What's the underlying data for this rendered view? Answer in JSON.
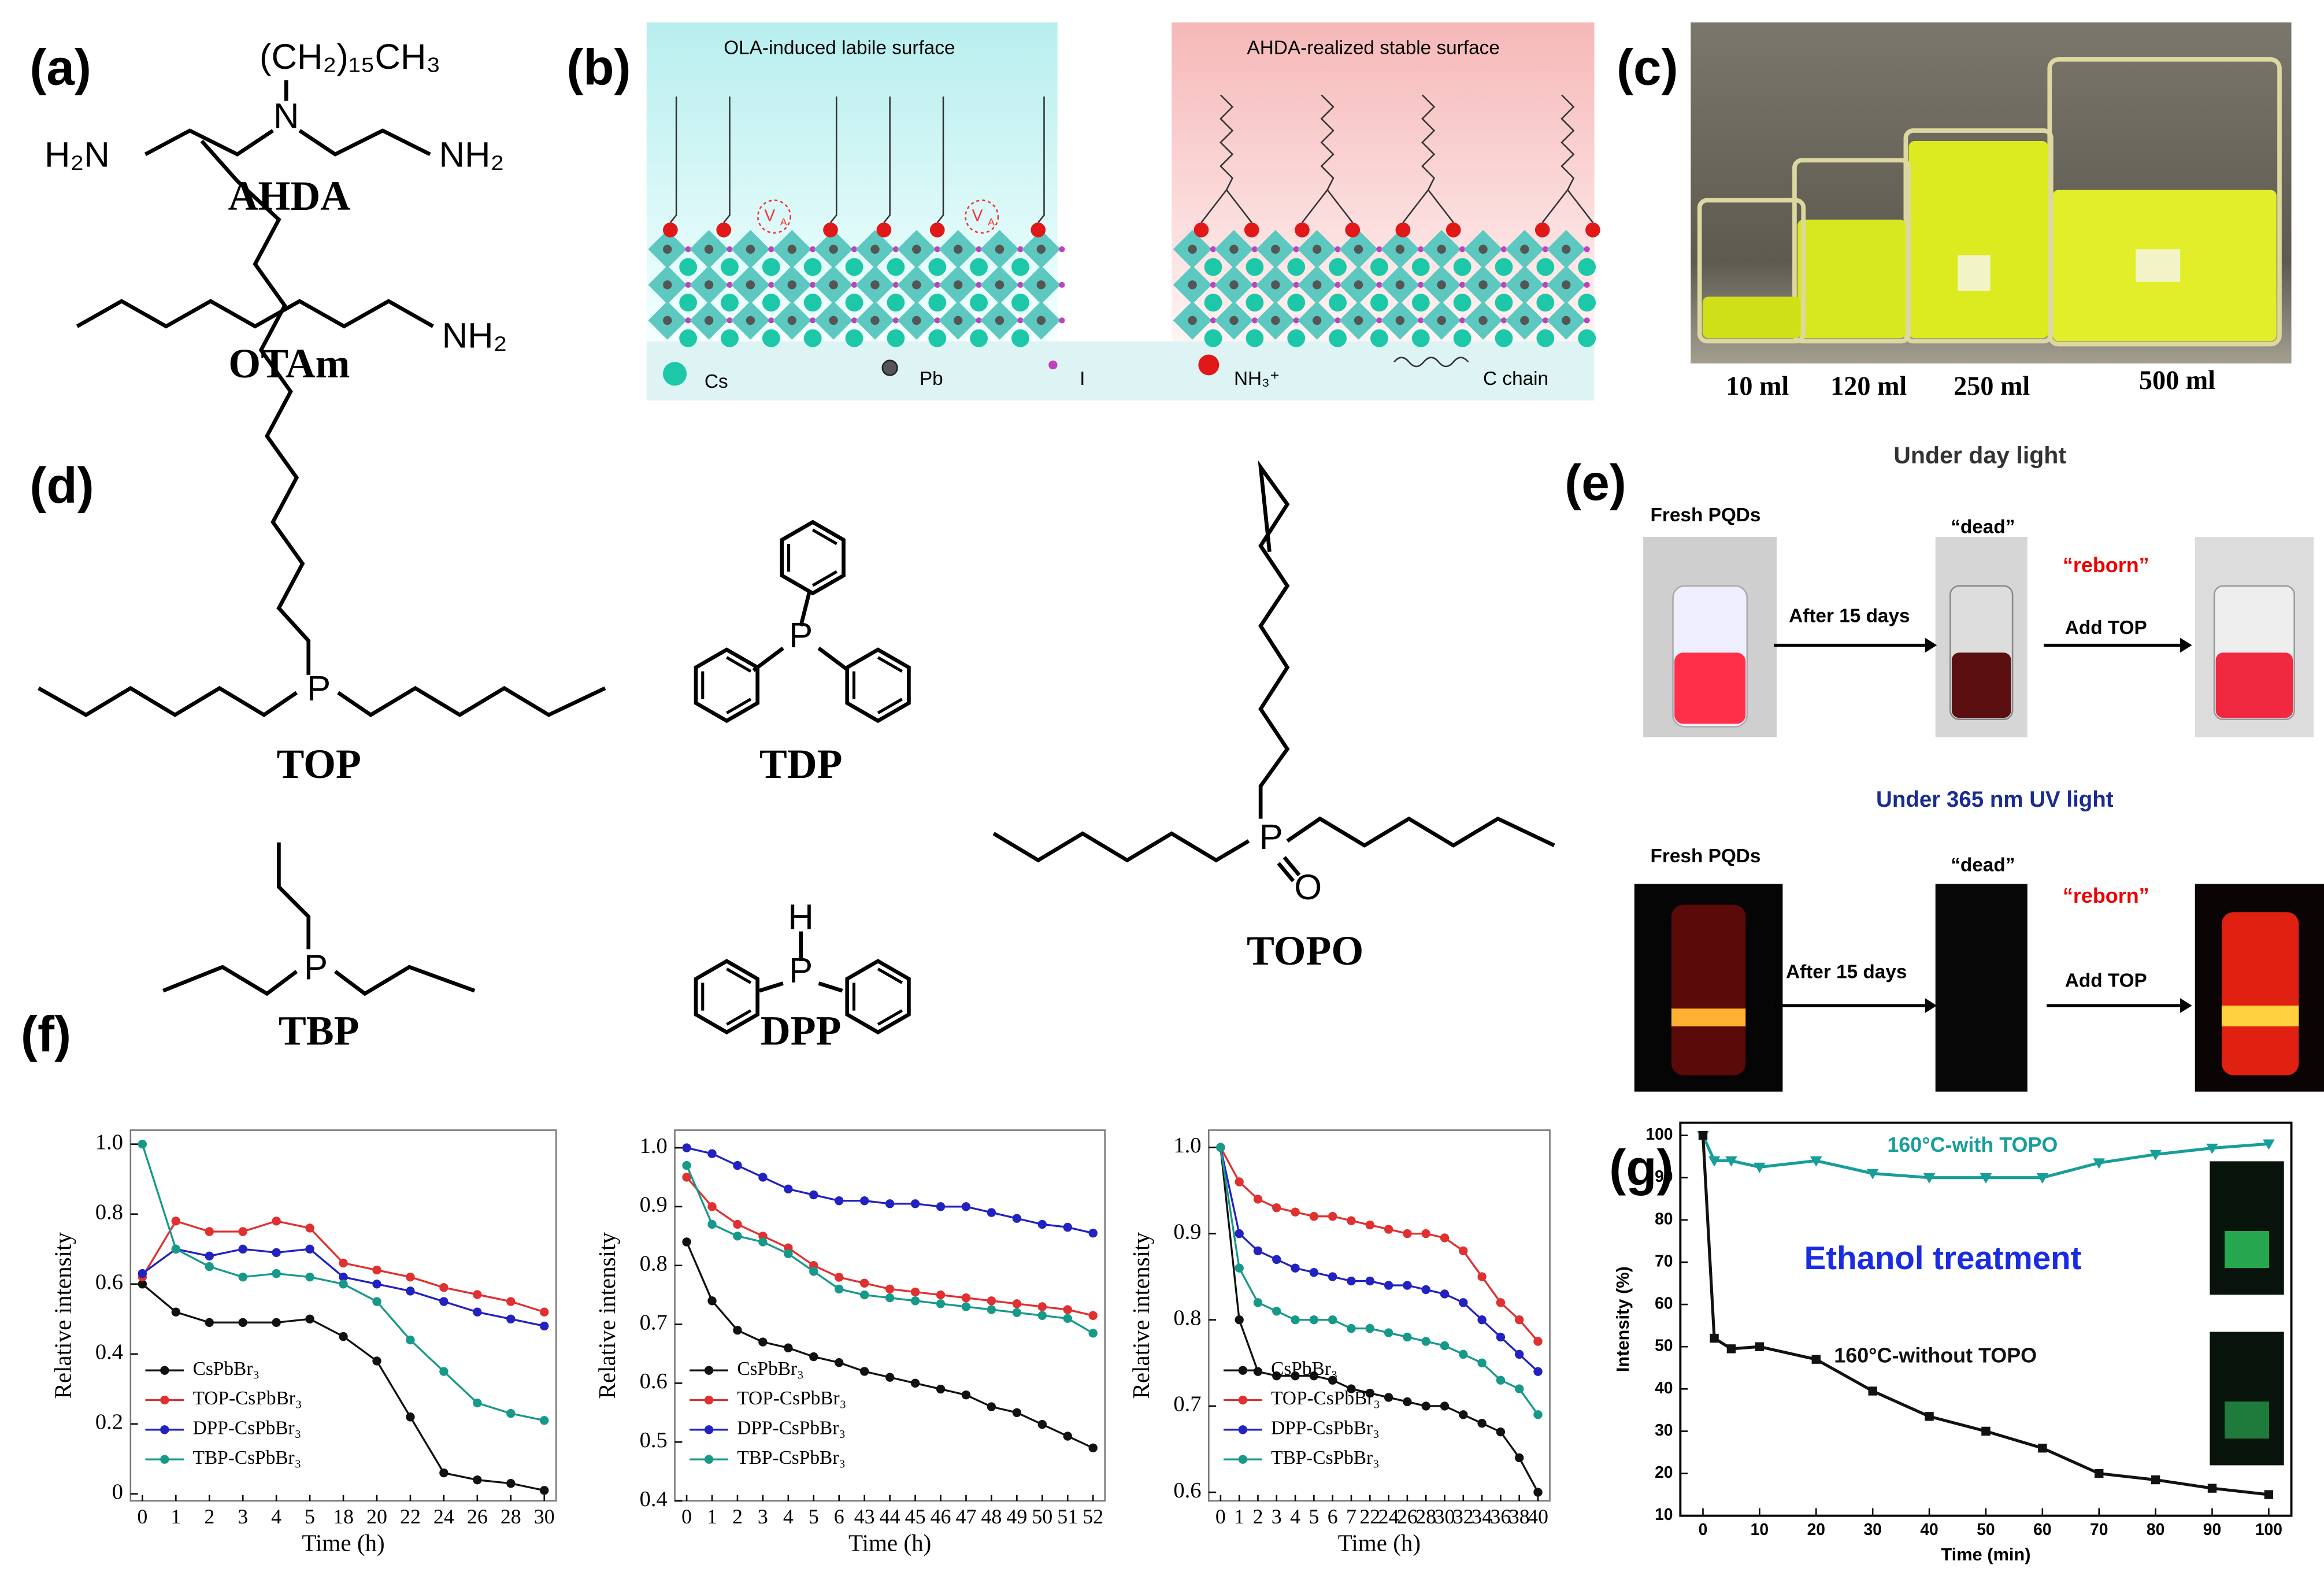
{
  "panel_labels": [
    "(a)",
    "(b)",
    "(c)",
    "(d)",
    "(e)",
    "(f)",
    "(g)"
  ],
  "panel_a": {
    "alkyl": "(CH₂)₁₅CH₃",
    "n": "N",
    "h2n": "H₂N",
    "nh2_1": "NH₂",
    "name1": "AHDA",
    "nh2_2": "NH₂",
    "name2": "OTAm"
  },
  "panel_b": {
    "left_title": "OLA-induced labile surface",
    "right_title": "AHDA-realized stable surface",
    "vacancy": "V",
    "vacancy_sub": "A",
    "legend": [
      "Cs",
      "Pb",
      "I",
      "NH₃⁺",
      "C chain"
    ]
  },
  "panel_c": {
    "volumes": [
      "10 ml",
      "120 ml",
      "250 ml",
      "500 ml"
    ]
  },
  "panel_d": {
    "names": [
      "TOP",
      "TDP",
      "TBP",
      "DPP",
      "TOPO"
    ],
    "atoms": [
      "P",
      "P",
      "P",
      "P",
      "H",
      "P",
      "O"
    ]
  },
  "panel_e": {
    "rows": [
      {
        "title": "Under day light",
        "fresh": "Fresh PQDs",
        "dead": "“dead”",
        "reborn": "“reborn”",
        "step1": "After 15 days",
        "step2": "Add TOP"
      },
      {
        "title": "Under 365 nm UV light",
        "fresh": "Fresh PQDs",
        "dead": "“dead”",
        "reborn": "“reborn”",
        "step1": "After 15 days",
        "step2": "Add TOP"
      }
    ]
  },
  "chart_data": [
    {
      "type": "line",
      "x_label": "Time (h)",
      "y_label": "Relative intensity",
      "legend": "lower left",
      "categories": [
        "0",
        "1",
        "2",
        "3",
        "4",
        "5",
        "18",
        "20",
        "22",
        "24",
        "26",
        "28",
        "30"
      ],
      "ylim": [
        -0.02,
        1.04
      ],
      "yticks": [
        0,
        0.2,
        0.4,
        0.6,
        0.8,
        {
          "value": 1,
          "label": "1.0"
        }
      ],
      "series": [
        {
          "name": "CsPbBr₃",
          "color": "#111111",
          "values": [
            0.6,
            0.52,
            0.49,
            0.49,
            0.49,
            0.5,
            0.45,
            0.38,
            0.22,
            0.06,
            0.04,
            0.03,
            0.01
          ]
        },
        {
          "name": "TOP-CsPbBr₃",
          "color": "#e03030",
          "values": [
            0.62,
            0.78,
            0.75,
            0.75,
            0.78,
            0.76,
            0.66,
            0.64,
            0.62,
            0.59,
            0.57,
            0.55,
            0.52
          ]
        },
        {
          "name": "DPP-CsPbBr₃",
          "color": "#2222c0",
          "values": [
            0.63,
            0.7,
            0.68,
            0.7,
            0.69,
            0.7,
            0.62,
            0.6,
            0.58,
            0.55,
            0.52,
            0.5,
            0.48
          ]
        },
        {
          "name": "TBP-CsPbBr₃",
          "color": "#17998a",
          "values": [
            1.0,
            0.7,
            0.65,
            0.62,
            0.63,
            0.62,
            0.6,
            0.55,
            0.44,
            0.35,
            0.26,
            0.23,
            0.21
          ]
        }
      ]
    },
    {
      "type": "line",
      "x_label": "Time (h)",
      "y_label": "Relative intensity",
      "legend": "lower left",
      "categories": [
        "0",
        "1",
        "2",
        "3",
        "4",
        "5",
        "6",
        "43",
        "44",
        "45",
        "46",
        "47",
        "48",
        "49",
        "50",
        "51",
        "52"
      ],
      "ylim": [
        0.4,
        1.03
      ],
      "yticks": [
        0.4,
        0.5,
        0.6,
        0.7,
        0.8,
        0.9,
        {
          "value": 1,
          "label": "1.0"
        }
      ],
      "series": [
        {
          "name": "CsPbBr₃",
          "color": "#111111",
          "values": [
            0.84,
            0.74,
            0.69,
            0.67,
            0.66,
            0.645,
            0.635,
            0.62,
            0.61,
            0.6,
            0.59,
            0.58,
            0.56,
            0.55,
            0.53,
            0.51,
            0.49
          ]
        },
        {
          "name": "TOP-CsPbBr₃",
          "color": "#e03030",
          "values": [
            0.95,
            0.9,
            0.87,
            0.85,
            0.83,
            0.8,
            0.78,
            0.77,
            0.76,
            0.755,
            0.75,
            0.745,
            0.74,
            0.735,
            0.73,
            0.725,
            0.715
          ]
        },
        {
          "name": "DPP-CsPbBr₃",
          "color": "#2222c0",
          "values": [
            1.0,
            0.99,
            0.97,
            0.95,
            0.93,
            0.92,
            0.91,
            0.91,
            0.905,
            0.905,
            0.9,
            0.9,
            0.89,
            0.88,
            0.87,
            0.865,
            0.855
          ]
        },
        {
          "name": "TBP-CsPbBr₃",
          "color": "#17998a",
          "values": [
            0.97,
            0.87,
            0.85,
            0.84,
            0.82,
            0.79,
            0.76,
            0.75,
            0.745,
            0.74,
            0.735,
            0.73,
            0.725,
            0.72,
            0.715,
            0.71,
            0.685
          ]
        }
      ]
    },
    {
      "type": "line",
      "x_label": "Time (h)",
      "y_label": "Relative intensity",
      "legend": "lower left",
      "categories": [
        "0",
        "1",
        "2",
        "3",
        "4",
        "5",
        "6",
        "7",
        "22",
        "24",
        "26",
        "28",
        "30",
        "32",
        "34",
        "36",
        "38",
        "40"
      ],
      "ylim": [
        0.59,
        1.02
      ],
      "yticks": [
        0.6,
        0.7,
        0.8,
        0.9,
        {
          "value": 1,
          "label": "1.0"
        }
      ],
      "series": [
        {
          "name": "CsPbBr₃",
          "color": "#111111",
          "values": [
            1.0,
            0.8,
            0.74,
            0.735,
            0.735,
            0.735,
            0.73,
            0.72,
            0.715,
            0.71,
            0.705,
            0.7,
            0.7,
            0.69,
            0.68,
            0.67,
            0.64,
            0.6
          ]
        },
        {
          "name": "TOP-CsPbBr₃",
          "color": "#e03030",
          "values": [
            1.0,
            0.96,
            0.94,
            0.93,
            0.925,
            0.92,
            0.92,
            0.915,
            0.91,
            0.905,
            0.9,
            0.9,
            0.895,
            0.88,
            0.85,
            0.82,
            0.8,
            0.775
          ]
        },
        {
          "name": "DPP-CsPbBr₃",
          "color": "#2222c0",
          "values": [
            1.0,
            0.9,
            0.88,
            0.87,
            0.86,
            0.855,
            0.85,
            0.845,
            0.845,
            0.84,
            0.84,
            0.835,
            0.83,
            0.82,
            0.8,
            0.78,
            0.76,
            0.74
          ]
        },
        {
          "name": "TBP-CsPbBr₃",
          "color": "#17998a",
          "values": [
            1.0,
            0.86,
            0.82,
            0.81,
            0.8,
            0.8,
            0.8,
            0.79,
            0.79,
            0.785,
            0.78,
            0.775,
            0.77,
            0.76,
            0.75,
            0.73,
            0.72,
            0.69
          ]
        }
      ]
    },
    {
      "type": "line",
      "x_label": "Time (min)",
      "y_label": "Intensity (%)",
      "annotations": [
        "Ethanol treatment"
      ],
      "x": [
        0,
        2,
        5,
        10,
        20,
        30,
        40,
        50,
        60,
        70,
        80,
        90,
        100
      ],
      "xlim": [
        -4,
        104
      ],
      "xticks": [
        0,
        10,
        20,
        30,
        40,
        50,
        60,
        70,
        80,
        90,
        100
      ],
      "ylim": [
        10,
        103
      ],
      "yticks": [
        10,
        20,
        30,
        40,
        50,
        60,
        70,
        80,
        90,
        100
      ],
      "series": [
        {
          "name": "160°C-with TOPO",
          "color": "#179e9a",
          "values": [
            100,
            94,
            94,
            92.5,
            94,
            91,
            90,
            90,
            90,
            93.5,
            95.5,
            97,
            98
          ]
        },
        {
          "name": "160°C-without TOPO",
          "color": "#111111",
          "values": [
            100,
            52,
            49.5,
            50,
            47,
            39.5,
            33.5,
            30,
            26,
            20,
            18.5,
            16.5,
            15
          ]
        }
      ]
    }
  ]
}
